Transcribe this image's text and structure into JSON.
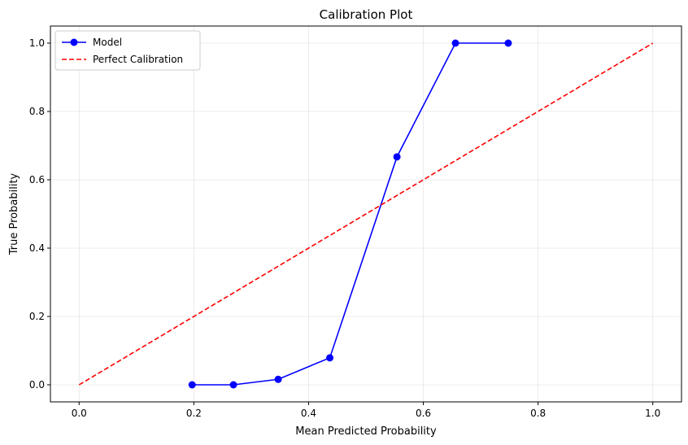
{
  "chart_data": {
    "type": "line",
    "title": "Calibration Plot",
    "xlabel": "Mean Predicted Probability",
    "ylabel": "True Probability",
    "xlim": [
      -0.05,
      1.05
    ],
    "ylim": [
      -0.05,
      1.05
    ],
    "xticks": [
      0.0,
      0.2,
      0.4,
      0.6,
      0.8,
      1.0
    ],
    "xtick_labels": [
      "0.0",
      "0.2",
      "0.4",
      "0.6",
      "0.8",
      "1.0"
    ],
    "yticks": [
      0.0,
      0.2,
      0.4,
      0.6,
      0.8,
      1.0
    ],
    "ytick_labels": [
      "0.0",
      "0.2",
      "0.4",
      "0.6",
      "0.8",
      "1.0"
    ],
    "grid": true,
    "legend_position": "top-left",
    "series": [
      {
        "name": "Model",
        "color": "#0000ff",
        "style": "solid",
        "marker": "circle",
        "x": [
          0.197,
          0.269,
          0.347,
          0.437,
          0.554,
          0.656,
          0.748
        ],
        "y": [
          0.0,
          0.0,
          0.016,
          0.079,
          0.667,
          1.0,
          1.0
        ]
      },
      {
        "name": "Perfect Calibration",
        "color": "#ff0000",
        "style": "dashed",
        "marker": "none",
        "x": [
          0.0,
          1.0
        ],
        "y": [
          0.0,
          1.0
        ]
      }
    ]
  }
}
